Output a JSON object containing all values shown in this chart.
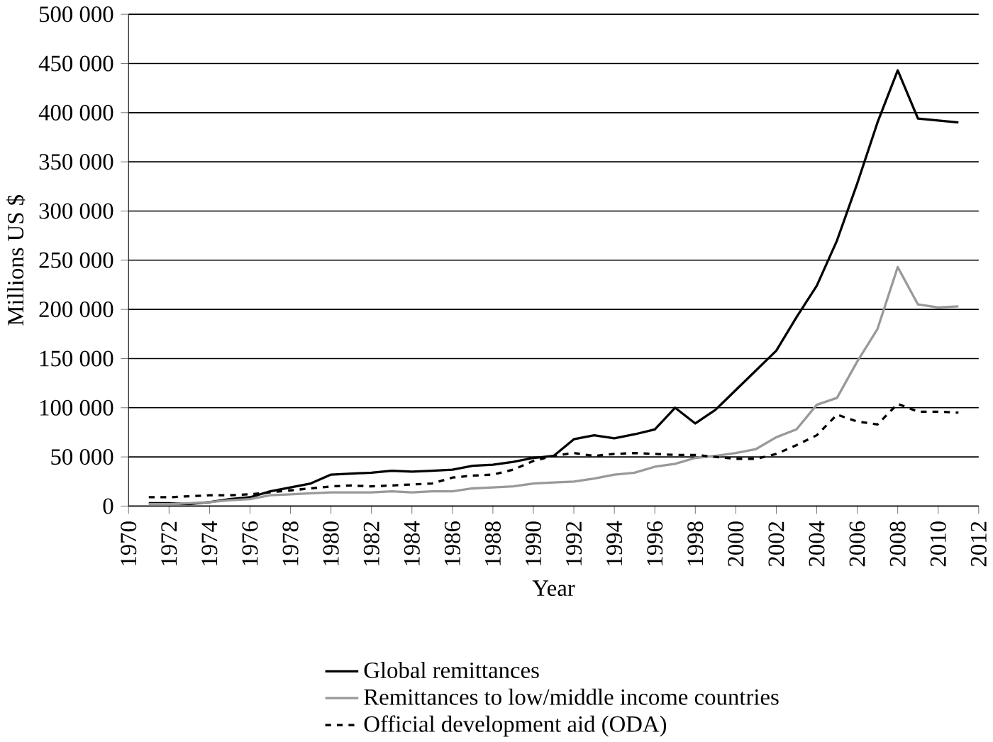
{
  "chart_data": {
    "type": "line",
    "xlabel": "Year",
    "ylabel": "Millions US $",
    "x": [
      1971,
      1972,
      1973,
      1974,
      1975,
      1976,
      1977,
      1978,
      1979,
      1980,
      1981,
      1982,
      1983,
      1984,
      1985,
      1986,
      1987,
      1988,
      1989,
      1990,
      1991,
      1992,
      1993,
      1994,
      1995,
      1996,
      1997,
      1998,
      1999,
      2000,
      2001,
      2002,
      2003,
      2004,
      2005,
      2006,
      2007,
      2008,
      2009,
      2010,
      2011
    ],
    "series": [
      {
        "name": "Global remittances",
        "color": "#000000",
        "line_style": "solid",
        "values": [
          3000,
          3000,
          2000,
          4000,
          7000,
          9000,
          15000,
          19000,
          23000,
          32000,
          33000,
          34000,
          36000,
          35000,
          36000,
          37000,
          41000,
          42000,
          45000,
          49000,
          51000,
          68000,
          72000,
          69000,
          73000,
          78000,
          100000,
          84000,
          98000,
          118000,
          138000,
          158000,
          192000,
          224000,
          270000,
          328000,
          390000,
          443000,
          394000,
          392000,
          390000
        ]
      },
      {
        "name": "Remittances to low/middle income countries",
        "color": "#999999",
        "line_style": "solid",
        "values": [
          2000,
          2000,
          3000,
          4000,
          6000,
          7000,
          11000,
          12000,
          13000,
          14000,
          14000,
          14000,
          15000,
          14000,
          15000,
          15000,
          18000,
          19000,
          20000,
          23000,
          24000,
          25000,
          28000,
          32000,
          34000,
          40000,
          43000,
          49000,
          51000,
          54000,
          58000,
          70000,
          78000,
          103000,
          110000,
          147000,
          180000,
          243000,
          205000,
          202000,
          203000
        ]
      },
      {
        "name": "Official development aid (ODA)",
        "color": "#000000",
        "line_style": "dashed",
        "values": [
          9000,
          9000,
          10000,
          11000,
          11000,
          12000,
          14000,
          16000,
          18000,
          20000,
          21000,
          20000,
          21000,
          22000,
          23000,
          29000,
          31000,
          32000,
          37000,
          46000,
          51000,
          54000,
          51000,
          53000,
          54000,
          53000,
          52000,
          52000,
          50000,
          48000,
          48000,
          53000,
          62000,
          72000,
          93000,
          86000,
          83000,
          104000,
          96000,
          96000,
          95000
        ]
      }
    ],
    "xlim": [
      1970,
      2012
    ],
    "xticks": [
      1970,
      1972,
      1974,
      1976,
      1978,
      1980,
      1982,
      1984,
      1986,
      1988,
      1990,
      1992,
      1994,
      1996,
      1998,
      2000,
      2002,
      2004,
      2006,
      2008,
      2010,
      2012
    ],
    "ylim": [
      0,
      500000
    ],
    "yticks": [
      0,
      {
        "value": 50000,
        "label": "50 000"
      },
      {
        "value": 100000,
        "label": "100 000"
      },
      {
        "value": 150000,
        "label": "150 000"
      },
      {
        "value": 200000,
        "label": "200 000"
      },
      {
        "value": 250000,
        "label": "250 000"
      },
      {
        "value": 300000,
        "label": "300 000"
      },
      {
        "value": 350000,
        "label": "350 000"
      },
      {
        "value": 400000,
        "label": "400 000"
      },
      {
        "value": 450000,
        "label": "450 000"
      },
      {
        "value": 500000,
        "label": "500 000"
      }
    ],
    "grid": "y",
    "legend": "bottom",
    "marker": "none"
  }
}
